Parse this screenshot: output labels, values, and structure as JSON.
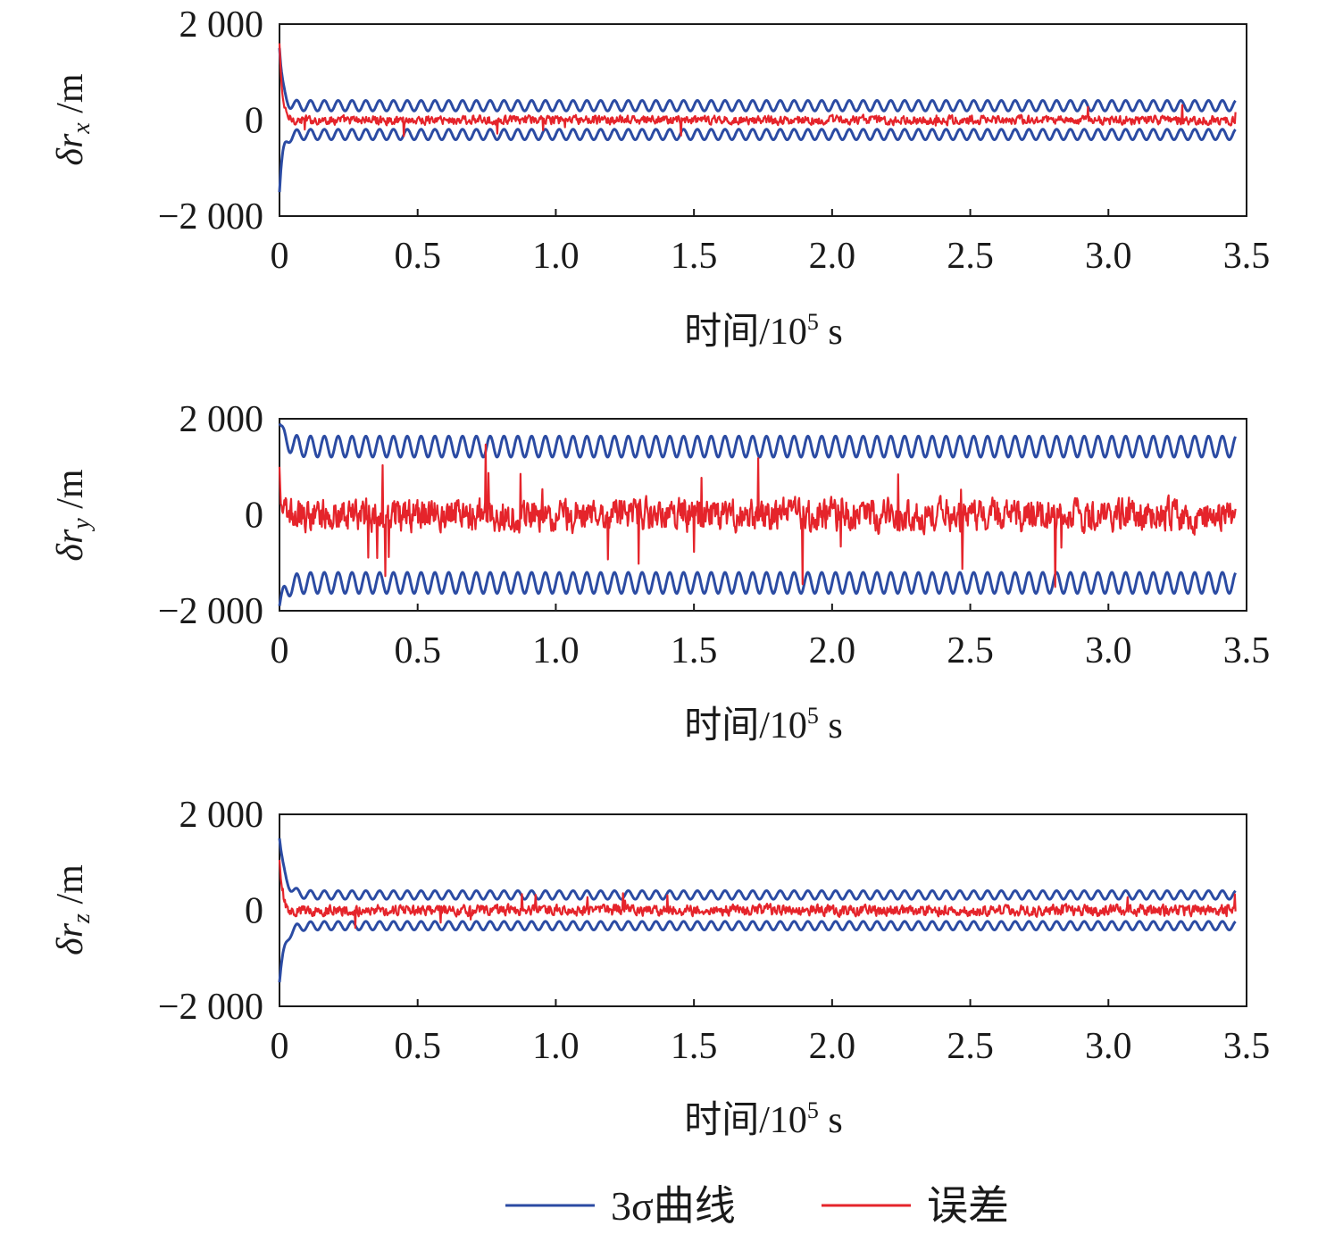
{
  "colors": {
    "sigma": "#2b4ba3",
    "error": "#e5242b",
    "axis": "#1a1a1a"
  },
  "legend": {
    "items": [
      {
        "label": "3σ曲线",
        "color": "#2b4ba3"
      },
      {
        "label": "误差",
        "color": "#e5242b"
      }
    ]
  },
  "chart_data": [
    {
      "type": "line",
      "ylabel": "δr_x /m",
      "ylabel_main": "δr",
      "ylabel_sub": "x",
      "ylabel_unit": " /m",
      "xlabel": "时间/10⁵ s",
      "xlabel_main": "时间/10",
      "xlabel_sup": "5",
      "xlabel_unit": " s",
      "xlim": [
        0,
        3.5
      ],
      "ylim": [
        -2000,
        2000
      ],
      "xticks": [
        0,
        0.5,
        1.0,
        1.5,
        2.0,
        2.5,
        3.0,
        3.5
      ],
      "xtick_labels": [
        "0",
        "0.5",
        "1.0",
        "1.5",
        "2.0",
        "2.5",
        "3.0",
        "3.5"
      ],
      "yticks": [
        -2000,
        0,
        2000
      ],
      "ytick_labels": [
        "−2 000",
        "0",
        "2 000"
      ],
      "grid": false,
      "x_end": 3.46,
      "series": [
        {
          "name": "3σ曲线",
          "role": "sigma-upper",
          "initial": 1500,
          "settle_time": 0.012,
          "mean": 300,
          "amplitude": 110,
          "period": 0.05
        },
        {
          "name": "3σ曲线",
          "role": "sigma-lower",
          "initial": -1500,
          "settle_time": 0.012,
          "mean": -300,
          "amplitude": 110,
          "period": 0.05
        },
        {
          "name": "误差",
          "role": "error",
          "initial": 1600,
          "settle_time": 0.01,
          "spread": 90,
          "spike_max": 300
        }
      ]
    },
    {
      "type": "line",
      "ylabel": "δr_y /m",
      "ylabel_main": "δr",
      "ylabel_sub": "y",
      "ylabel_unit": " /m",
      "xlabel": "时间/10⁵ s",
      "xlabel_main": "时间/10",
      "xlabel_sup": "5",
      "xlabel_unit": " s",
      "xlim": [
        0,
        3.5
      ],
      "ylim": [
        -2000,
        2000
      ],
      "xticks": [
        0,
        0.5,
        1.0,
        1.5,
        2.0,
        2.5,
        3.0,
        3.5
      ],
      "xtick_labels": [
        "0",
        "0.5",
        "1.0",
        "1.5",
        "2.0",
        "2.5",
        "3.0",
        "3.5"
      ],
      "yticks": [
        -2000,
        0,
        2000
      ],
      "ytick_labels": [
        "−2 000",
        "0",
        "2 000"
      ],
      "grid": false,
      "x_end": 3.46,
      "series": [
        {
          "name": "3σ曲线",
          "role": "sigma-upper",
          "initial": 1900,
          "settle_time": 0.02,
          "mean": 1420,
          "amplitude": 220,
          "period": 0.05
        },
        {
          "name": "3σ曲线",
          "role": "sigma-lower",
          "initial": -1900,
          "settle_time": 0.02,
          "mean": -1420,
          "amplitude": 220,
          "period": 0.05
        },
        {
          "name": "误差",
          "role": "error",
          "initial": 1000,
          "settle_time": 0.005,
          "spread": 330,
          "spike_max": 1300
        }
      ]
    },
    {
      "type": "line",
      "ylabel": "δr_z /m",
      "ylabel_main": "δr",
      "ylabel_sub": "z",
      "ylabel_unit": " /m",
      "xlabel": "时间/10⁵ s",
      "xlabel_main": "时间/10",
      "xlabel_sup": "5",
      "xlabel_unit": " s",
      "xlim": [
        0,
        3.5
      ],
      "ylim": [
        -2000,
        2000
      ],
      "xticks": [
        0,
        0.5,
        1.0,
        1.5,
        2.0,
        2.5,
        3.0,
        3.5
      ],
      "xtick_labels": [
        "0",
        "0.5",
        "1.0",
        "1.5",
        "2.0",
        "2.5",
        "3.0",
        "3.5"
      ],
      "yticks": [
        -2000,
        0,
        2000
      ],
      "ytick_labels": [
        "−2 000",
        "0",
        "2 000"
      ],
      "grid": false,
      "x_end": 3.46,
      "series": [
        {
          "name": "3σ曲线",
          "role": "sigma-upper",
          "initial": 1500,
          "settle_time": 0.02,
          "mean": 320,
          "amplitude": 90,
          "period": 0.05
        },
        {
          "name": "3σ曲线",
          "role": "sigma-lower",
          "initial": -1500,
          "settle_time": 0.02,
          "mean": -320,
          "amplitude": 90,
          "period": 0.05
        },
        {
          "name": "误差",
          "role": "error",
          "initial": 1050,
          "settle_time": 0.01,
          "spread": 110,
          "spike_max": 330
        }
      ]
    }
  ]
}
